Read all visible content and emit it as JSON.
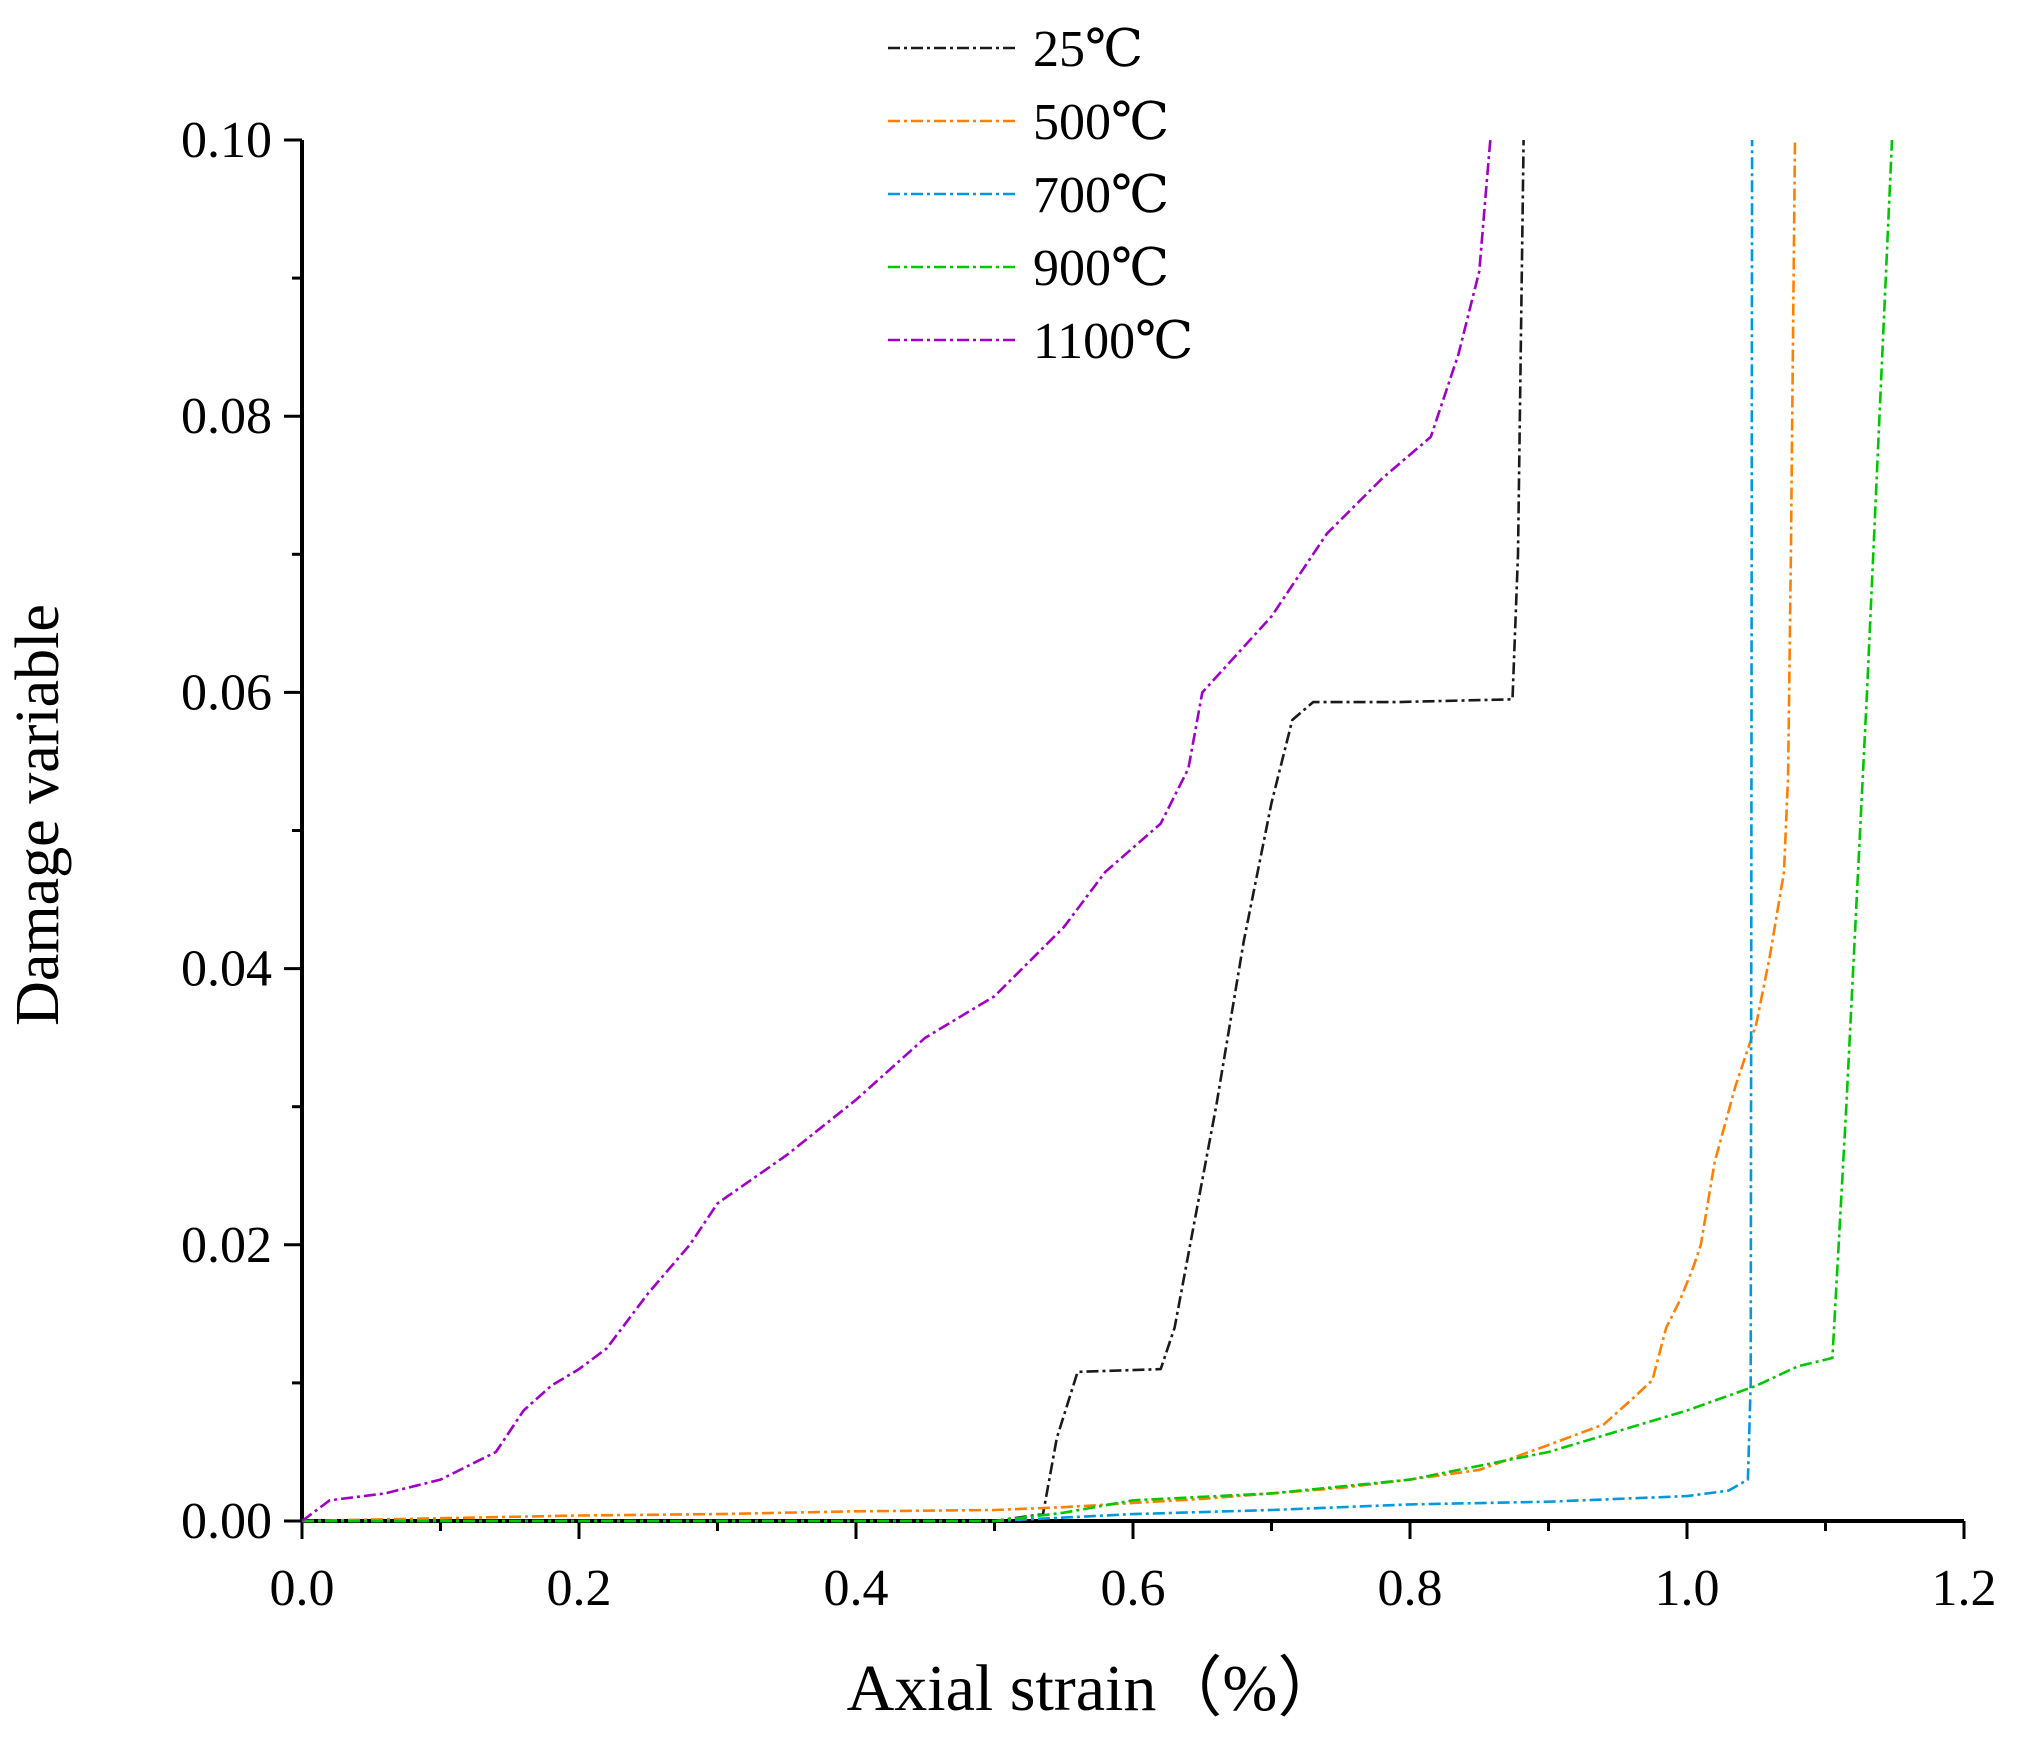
{
  "chart_data": {
    "type": "line",
    "title": "",
    "xlabel": "Axial strain（%）",
    "ylabel": "Damage variable",
    "xlim": [
      0.0,
      1.2
    ],
    "ylim": [
      0.0,
      0.1
    ],
    "x_ticks": [
      "0.0",
      "0.2",
      "0.4",
      "0.6",
      "0.8",
      "1.0",
      "1.2"
    ],
    "y_ticks": [
      "0.00",
      "0.02",
      "0.04",
      "0.06",
      "0.08",
      "0.10"
    ],
    "grid": false,
    "legend_position": "top-center",
    "series": [
      {
        "name": "25℃",
        "color": "#1a1a1a",
        "points": [
          [
            0.0,
            0.0
          ],
          [
            0.5,
            0.0
          ],
          [
            0.535,
            0.0005
          ],
          [
            0.545,
            0.006
          ],
          [
            0.56,
            0.0108
          ],
          [
            0.62,
            0.011
          ],
          [
            0.63,
            0.014
          ],
          [
            0.645,
            0.022
          ],
          [
            0.66,
            0.03
          ],
          [
            0.68,
            0.042
          ],
          [
            0.7,
            0.052
          ],
          [
            0.715,
            0.058
          ],
          [
            0.73,
            0.0593
          ],
          [
            0.79,
            0.0593
          ],
          [
            0.874,
            0.0595
          ],
          [
            0.878,
            0.07
          ],
          [
            0.882,
            0.1
          ]
        ]
      },
      {
        "name": "500℃",
        "color": "#ff8000",
        "points": [
          [
            0.0,
            0.0
          ],
          [
            0.1,
            0.0002
          ],
          [
            0.2,
            0.0004
          ],
          [
            0.3,
            0.0005
          ],
          [
            0.4,
            0.0007
          ],
          [
            0.5,
            0.0008
          ],
          [
            0.55,
            0.001
          ],
          [
            0.6,
            0.0013
          ],
          [
            0.65,
            0.0016
          ],
          [
            0.7,
            0.002
          ],
          [
            0.75,
            0.0024
          ],
          [
            0.8,
            0.003
          ],
          [
            0.85,
            0.0037
          ],
          [
            0.9,
            0.0055
          ],
          [
            0.94,
            0.007
          ],
          [
            0.96,
            0.0088
          ],
          [
            0.975,
            0.0102
          ],
          [
            0.985,
            0.014
          ],
          [
            0.995,
            0.016
          ],
          [
            1.005,
            0.0185
          ],
          [
            1.01,
            0.02
          ],
          [
            1.02,
            0.026
          ],
          [
            1.035,
            0.0315
          ],
          [
            1.05,
            0.036
          ],
          [
            1.06,
            0.041
          ],
          [
            1.07,
            0.047
          ],
          [
            1.073,
            0.054
          ],
          [
            1.075,
            0.07
          ],
          [
            1.077,
            0.09
          ],
          [
            1.078,
            0.1
          ]
        ]
      },
      {
        "name": "700℃",
        "color": "#0099e0",
        "points": [
          [
            0.0,
            0.0
          ],
          [
            0.5,
            0.0
          ],
          [
            0.6,
            0.0005
          ],
          [
            0.7,
            0.0008
          ],
          [
            0.8,
            0.0012
          ],
          [
            0.9,
            0.0014
          ],
          [
            1.0,
            0.0018
          ],
          [
            1.03,
            0.0022
          ],
          [
            1.044,
            0.003
          ],
          [
            1.046,
            0.01
          ],
          [
            1.0465,
            0.05
          ],
          [
            1.047,
            0.1
          ]
        ]
      },
      {
        "name": "900℃",
        "color": "#00c800",
        "points": [
          [
            0.0,
            0.0
          ],
          [
            0.5,
            0.0
          ],
          [
            0.55,
            0.0006
          ],
          [
            0.6,
            0.0015
          ],
          [
            0.7,
            0.002
          ],
          [
            0.8,
            0.003
          ],
          [
            0.85,
            0.004
          ],
          [
            0.9,
            0.005
          ],
          [
            0.95,
            0.0065
          ],
          [
            1.0,
            0.008
          ],
          [
            1.05,
            0.0098
          ],
          [
            1.08,
            0.0112
          ],
          [
            1.105,
            0.0118
          ],
          [
            1.115,
            0.03
          ],
          [
            1.13,
            0.06
          ],
          [
            1.148,
            0.1
          ]
        ]
      },
      {
        "name": "1100℃",
        "color": "#a000c8",
        "points": [
          [
            0.0,
            0.0
          ],
          [
            0.02,
            0.0015
          ],
          [
            0.06,
            0.002
          ],
          [
            0.1,
            0.003
          ],
          [
            0.14,
            0.005
          ],
          [
            0.16,
            0.008
          ],
          [
            0.18,
            0.0098
          ],
          [
            0.2,
            0.011
          ],
          [
            0.22,
            0.0125
          ],
          [
            0.25,
            0.0165
          ],
          [
            0.28,
            0.02
          ],
          [
            0.3,
            0.023
          ],
          [
            0.35,
            0.0265
          ],
          [
            0.4,
            0.0305
          ],
          [
            0.45,
            0.035
          ],
          [
            0.5,
            0.038
          ],
          [
            0.55,
            0.043
          ],
          [
            0.58,
            0.047
          ],
          [
            0.62,
            0.0505
          ],
          [
            0.64,
            0.0545
          ],
          [
            0.65,
            0.06
          ],
          [
            0.7,
            0.0655
          ],
          [
            0.74,
            0.0715
          ],
          [
            0.78,
            0.0755
          ],
          [
            0.815,
            0.0785
          ],
          [
            0.835,
            0.0845
          ],
          [
            0.85,
            0.0905
          ],
          [
            0.855,
            0.0965
          ],
          [
            0.858,
            0.1
          ]
        ]
      }
    ]
  }
}
